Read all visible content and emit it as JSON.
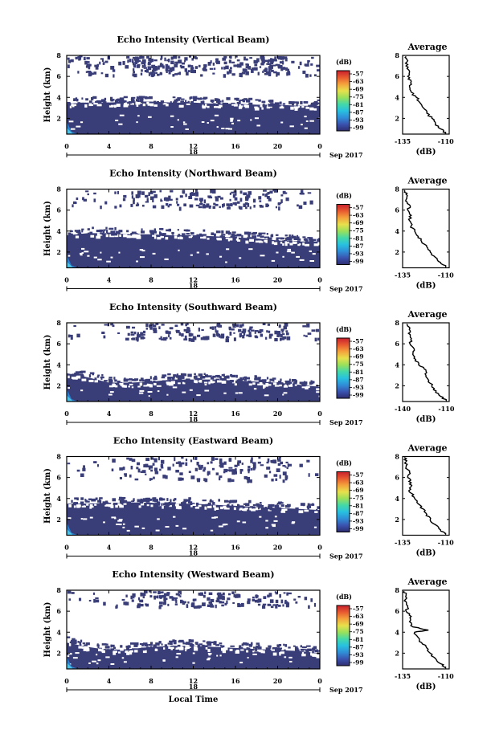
{
  "chart_data": [
    {
      "type": "heatmap",
      "title": "Echo Intensity (Vertical Beam)",
      "ylabel": "Height (km)",
      "date_label": "18",
      "month_label": "Sep 2017",
      "x_ticks": [
        "0",
        "4",
        "8",
        "12",
        "16",
        "20",
        "0"
      ],
      "y_ticks": [
        "2",
        "4",
        "6",
        "8"
      ],
      "ylim": [
        0.5,
        8.0
      ],
      "echo_top_km": [
        3.4,
        3.5,
        3.5,
        3.6,
        3.6,
        3.5,
        3.5,
        3.4,
        3.4,
        3.3,
        3.3,
        3.2,
        3.2
      ],
      "upper_echo_km": [
        6.2,
        8.0
      ],
      "hour_samples": [
        0,
        2,
        4,
        6,
        8,
        10,
        12,
        14,
        16,
        18,
        20,
        22,
        24
      ],
      "colorbar_unit": "(dB)",
      "colorbar_ticks": [
        "-57",
        "-63",
        "-69",
        "-75",
        "-81",
        "-87",
        "-93",
        "-99"
      ],
      "profile": {
        "title": "Average",
        "xlabel": "(dB)",
        "x_ticks": [
          "-135",
          "-110"
        ],
        "y_ticks": [
          "2",
          "4",
          "6",
          "8"
        ],
        "xlim": [
          -135,
          -108
        ],
        "ylim": [
          0.5,
          8.0
        ],
        "heights": [
          0.6,
          1.0,
          1.5,
          2.0,
          2.5,
          3.0,
          3.5,
          4.0,
          4.5,
          5.0,
          5.5,
          6.0,
          6.5,
          7.0,
          7.5,
          7.9
        ],
        "values": [
          -110,
          -113,
          -116,
          -118,
          -121,
          -123,
          -125,
          -127,
          -130,
          -131,
          -130,
          -132,
          -131,
          -133,
          -132,
          -133
        ]
      }
    },
    {
      "type": "heatmap",
      "title": "Echo Intensity (Northward Beam)",
      "ylabel": "Height (km)",
      "date_label": "18",
      "month_label": "Sep 2017",
      "x_ticks": [
        "0",
        "4",
        "8",
        "12",
        "16",
        "20",
        "0"
      ],
      "y_ticks": [
        "2",
        "4",
        "6",
        "8"
      ],
      "ylim": [
        0.5,
        8.0
      ],
      "echo_top_km": [
        3.6,
        3.8,
        3.8,
        3.7,
        3.7,
        3.6,
        3.6,
        3.5,
        3.4,
        3.3,
        3.1,
        3.0,
        3.0
      ],
      "upper_echo_km": [
        6.3,
        8.0
      ],
      "hour_samples": [
        0,
        2,
        4,
        6,
        8,
        10,
        12,
        14,
        16,
        18,
        20,
        22,
        24
      ],
      "colorbar_unit": "(dB)",
      "colorbar_ticks": [
        "-57",
        "-63",
        "-69",
        "-75",
        "-81",
        "-87",
        "-93",
        "-99"
      ],
      "profile": {
        "title": "Average",
        "xlabel": "(dB)",
        "x_ticks": [
          "-135",
          "-110"
        ],
        "y_ticks": [
          "2",
          "4",
          "6",
          "8"
        ],
        "xlim": [
          -135,
          -108
        ],
        "ylim": [
          0.5,
          8.0
        ],
        "heights": [
          0.6,
          1.0,
          1.5,
          2.0,
          2.5,
          3.0,
          3.5,
          4.0,
          4.5,
          5.0,
          5.5,
          6.0,
          6.5,
          7.0,
          7.5,
          7.9
        ],
        "values": [
          -110,
          -113,
          -116,
          -119,
          -121,
          -124,
          -126,
          -128,
          -130,
          -131,
          -130,
          -132,
          -131,
          -133,
          -133,
          -134
        ]
      }
    },
    {
      "type": "heatmap",
      "title": "Echo Intensity (Southward Beam)",
      "ylabel": "Height (km)",
      "date_label": "18",
      "month_label": "Sep 2017",
      "x_ticks": [
        "0",
        "4",
        "8",
        "12",
        "16",
        "20",
        "0"
      ],
      "y_ticks": [
        "2",
        "4",
        "6",
        "8"
      ],
      "ylim": [
        0.5,
        8.0
      ],
      "echo_top_km": [
        3.2,
        2.8,
        2.3,
        2.3,
        2.4,
        2.6,
        2.6,
        2.6,
        2.5,
        2.4,
        2.3,
        2.1,
        1.9
      ],
      "upper_echo_km": [
        6.5,
        8.0
      ],
      "hour_samples": [
        0,
        2,
        4,
        6,
        8,
        10,
        12,
        14,
        16,
        18,
        20,
        22,
        24
      ],
      "colorbar_unit": "(dB)",
      "colorbar_ticks": [
        "-57",
        "-63",
        "-69",
        "-75",
        "-81",
        "-87",
        "-93",
        "-99"
      ],
      "profile": {
        "title": "Average",
        "xlabel": "(dB)",
        "x_ticks": [
          "-140",
          "-110"
        ],
        "y_ticks": [
          "2",
          "4",
          "6",
          "8"
        ],
        "xlim": [
          -140,
          -108
        ],
        "ylim": [
          0.5,
          8.0
        ],
        "heights": [
          0.6,
          1.0,
          1.5,
          2.0,
          2.5,
          3.0,
          3.5,
          4.0,
          4.5,
          5.0,
          5.5,
          6.0,
          6.5,
          7.0,
          7.5,
          7.9
        ],
        "values": [
          -110,
          -114,
          -117,
          -120,
          -122,
          -124,
          -124,
          -129,
          -131,
          -133,
          -132,
          -135,
          -134,
          -136,
          -135,
          -137
        ]
      }
    },
    {
      "type": "heatmap",
      "title": "Echo Intensity (Eastward Beam)",
      "ylabel": "Height (km)",
      "date_label": "18",
      "month_label": "Sep 2017",
      "x_ticks": [
        "0",
        "4",
        "8",
        "12",
        "16",
        "20",
        "0"
      ],
      "y_ticks": [
        "2",
        "4",
        "6",
        "8"
      ],
      "ylim": [
        0.5,
        8.0
      ],
      "echo_top_km": [
        3.5,
        3.5,
        3.6,
        3.6,
        3.6,
        3.5,
        3.5,
        3.4,
        3.3,
        3.2,
        3.1,
        3.0,
        2.9
      ],
      "upper_echo_km": [
        5.8,
        8.0
      ],
      "hour_samples": [
        0,
        2,
        4,
        6,
        8,
        10,
        12,
        14,
        16,
        18,
        20,
        22,
        24
      ],
      "colorbar_unit": "(dB)",
      "colorbar_ticks": [
        "-57",
        "-63",
        "-69",
        "-75",
        "-81",
        "-87",
        "-93",
        "-99"
      ],
      "profile": {
        "title": "Average",
        "xlabel": "(dB)",
        "x_ticks": [
          "-135",
          "-110"
        ],
        "y_ticks": [
          "2",
          "4",
          "6",
          "8"
        ],
        "xlim": [
          -135,
          -108
        ],
        "ylim": [
          0.5,
          8.0
        ],
        "heights": [
          0.6,
          1.0,
          1.5,
          2.0,
          2.5,
          3.0,
          3.5,
          4.0,
          4.5,
          5.0,
          5.5,
          6.0,
          6.5,
          7.0,
          7.5,
          7.9
        ],
        "values": [
          -110,
          -113,
          -116,
          -119,
          -121,
          -123,
          -126,
          -128,
          -130,
          -131,
          -130,
          -132,
          -131,
          -133,
          -133,
          -134
        ]
      }
    },
    {
      "type": "heatmap",
      "title": "Echo Intensity (Westward Beam)",
      "ylabel": "Height (km)",
      "date_label": "18",
      "month_label": "Sep 2017",
      "xlabel": "Local Time",
      "x_ticks": [
        "0",
        "4",
        "8",
        "12",
        "16",
        "20",
        "0"
      ],
      "y_ticks": [
        "2",
        "4",
        "6",
        "8"
      ],
      "ylim": [
        0.5,
        8.0
      ],
      "echo_top_km": [
        3.0,
        2.6,
        2.3,
        2.4,
        2.6,
        2.7,
        2.7,
        2.6,
        2.5,
        2.4,
        2.3,
        2.2,
        2.0
      ],
      "upper_echo_km": [
        6.5,
        8.0
      ],
      "hour_samples": [
        0,
        2,
        4,
        6,
        8,
        10,
        12,
        14,
        16,
        18,
        20,
        22,
        24
      ],
      "colorbar_unit": "(dB)",
      "colorbar_ticks": [
        "-57",
        "-63",
        "-69",
        "-75",
        "-81",
        "-87",
        "-93",
        "-99"
      ],
      "profile": {
        "title": "Average",
        "xlabel": "(dB)",
        "x_ticks": [
          "-135",
          "-110"
        ],
        "y_ticks": [
          "2",
          "4",
          "6",
          "8"
        ],
        "xlim": [
          -135,
          -108
        ],
        "ylim": [
          0.5,
          8.0
        ],
        "heights": [
          0.6,
          1.0,
          1.5,
          2.0,
          2.5,
          3.0,
          3.5,
          4.0,
          4.2,
          4.5,
          5.0,
          5.5,
          6.0,
          6.5,
          7.0,
          7.5,
          7.9
        ],
        "values": [
          -110,
          -113,
          -116,
          -119,
          -121,
          -124,
          -126,
          -128,
          -120,
          -129,
          -131,
          -130,
          -133,
          -132,
          -134,
          -133,
          -134
        ]
      }
    }
  ],
  "colors": {
    "echo_fill": "#3a3e78",
    "near_surface": "#2d7fd0",
    "colorbar": [
      "#2e2c6e",
      "#3a53b0",
      "#2f8fd8",
      "#28c1e0",
      "#44d9a8",
      "#9be05a",
      "#e8e04c",
      "#f4a23c",
      "#e85a30",
      "#c8202c"
    ]
  }
}
